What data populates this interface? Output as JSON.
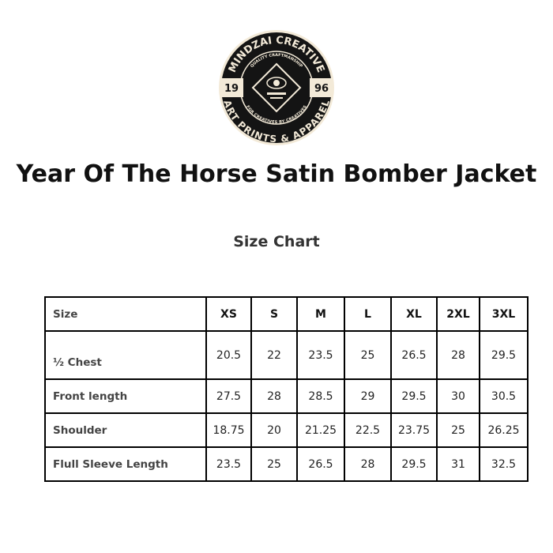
{
  "logo": {
    "brand": "MINDZAI CREATIVE",
    "tagline_top": "QUALITY CRAFTMANSHIP",
    "tagline_bottom": "FOR CREATIVES BY CREATIVES",
    "year_left": "19",
    "year_right": "96",
    "bottom": "ART PRINTS & APPAREL"
  },
  "title": "Year Of The Horse Satin Bomber Jacket",
  "subtitle": "Size Chart",
  "table": {
    "header": [
      "Size",
      "XS",
      "S",
      "M",
      "L",
      "XL",
      "2XL",
      "3XL"
    ],
    "rows": [
      {
        "label": "½ Chest",
        "values": [
          "20.5",
          "22",
          "23.5",
          "25",
          "26.5",
          "28",
          "29.5"
        ]
      },
      {
        "label": "Front length",
        "values": [
          "27.5",
          "28",
          "28.5",
          "29",
          "29.5",
          "30",
          "30.5"
        ]
      },
      {
        "label": "Shoulder",
        "values": [
          "18.75",
          "20",
          "21.25",
          "22.5",
          "23.75",
          "25",
          "26.25"
        ]
      },
      {
        "label": "Flull Sleeve Length",
        "values": [
          "23.5",
          "25",
          "26.5",
          "28",
          "29.5",
          "31",
          "32.5"
        ]
      }
    ]
  }
}
